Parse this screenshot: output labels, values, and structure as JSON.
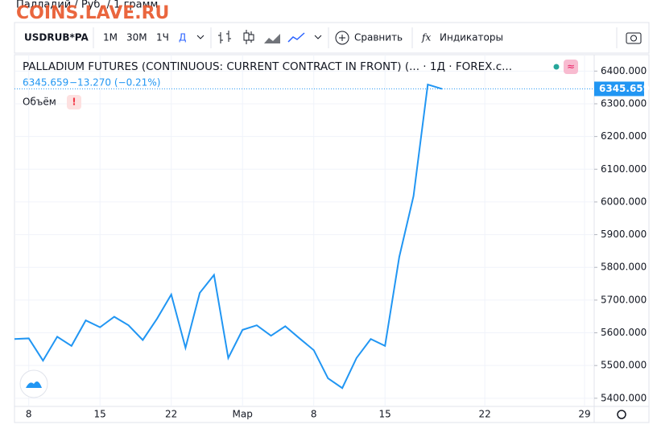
{
  "page_title": "Палладий / Руб. / 1 грамм",
  "watermark": "COINS.LAVE.RU",
  "toolbar": {
    "symbol": "USDRUB*PA",
    "intervals": [
      "1М",
      "30М",
      "1Ч",
      "Д"
    ],
    "compare": "Сравнить",
    "indicators": "Индикаторы",
    "fx": "fx"
  },
  "legend": {
    "title": "PALLADIUM FUTURES (CONTINUOUS: CURRENT CONTRACT IN FRONT) (... · 1Д · FOREX.c...",
    "change": "−13.270 (−0.21%)",
    "volume": "Объём",
    "volume_badge": "!",
    "badge": "≈"
  },
  "chart_data": {
    "type": "line",
    "color": "#2196f3",
    "grid": true,
    "categories": [
      null,
      "8",
      null,
      null,
      null,
      null,
      "15",
      null,
      null,
      null,
      null,
      "22",
      null,
      null,
      null,
      null,
      "Мар",
      null,
      null,
      null,
      null,
      "8",
      null,
      null,
      null,
      null,
      "15",
      null,
      null,
      null,
      null,
      null,
      null,
      "22",
      null,
      null,
      null,
      null,
      null,
      null,
      "29"
    ],
    "values": [
      5581,
      5583,
      5515,
      5588,
      5560,
      5638,
      5617,
      5649,
      5623,
      5578,
      5643,
      5717,
      5554,
      5722,
      5777,
      5523,
      5609,
      5623,
      5591,
      5620,
      5583,
      5547,
      5461,
      5431,
      5523,
      5581,
      5560,
      5832,
      6018,
      6358.929,
      6345.659,
      null,
      null,
      null,
      null,
      null,
      null,
      null,
      null,
      null,
      null
    ],
    "ylim": [
      5375,
      6450
    ],
    "yticks": [
      {
        "value": 5400,
        "label": "5400.000"
      },
      {
        "value": 5500,
        "label": "5500.000"
      },
      {
        "value": 5600,
        "label": "5600.000"
      },
      {
        "value": 5700,
        "label": "5700.000"
      },
      {
        "value": 5800,
        "label": "5800.000"
      },
      {
        "value": 5900,
        "label": "5900.000"
      },
      {
        "value": 6000,
        "label": "6000.000"
      },
      {
        "value": 6100,
        "label": "6100.000"
      },
      {
        "value": 6200,
        "label": "6200.000"
      },
      {
        "value": 6300,
        "label": "6300.000"
      },
      {
        "value": 6400,
        "label": "6400.000"
      }
    ]
  }
}
